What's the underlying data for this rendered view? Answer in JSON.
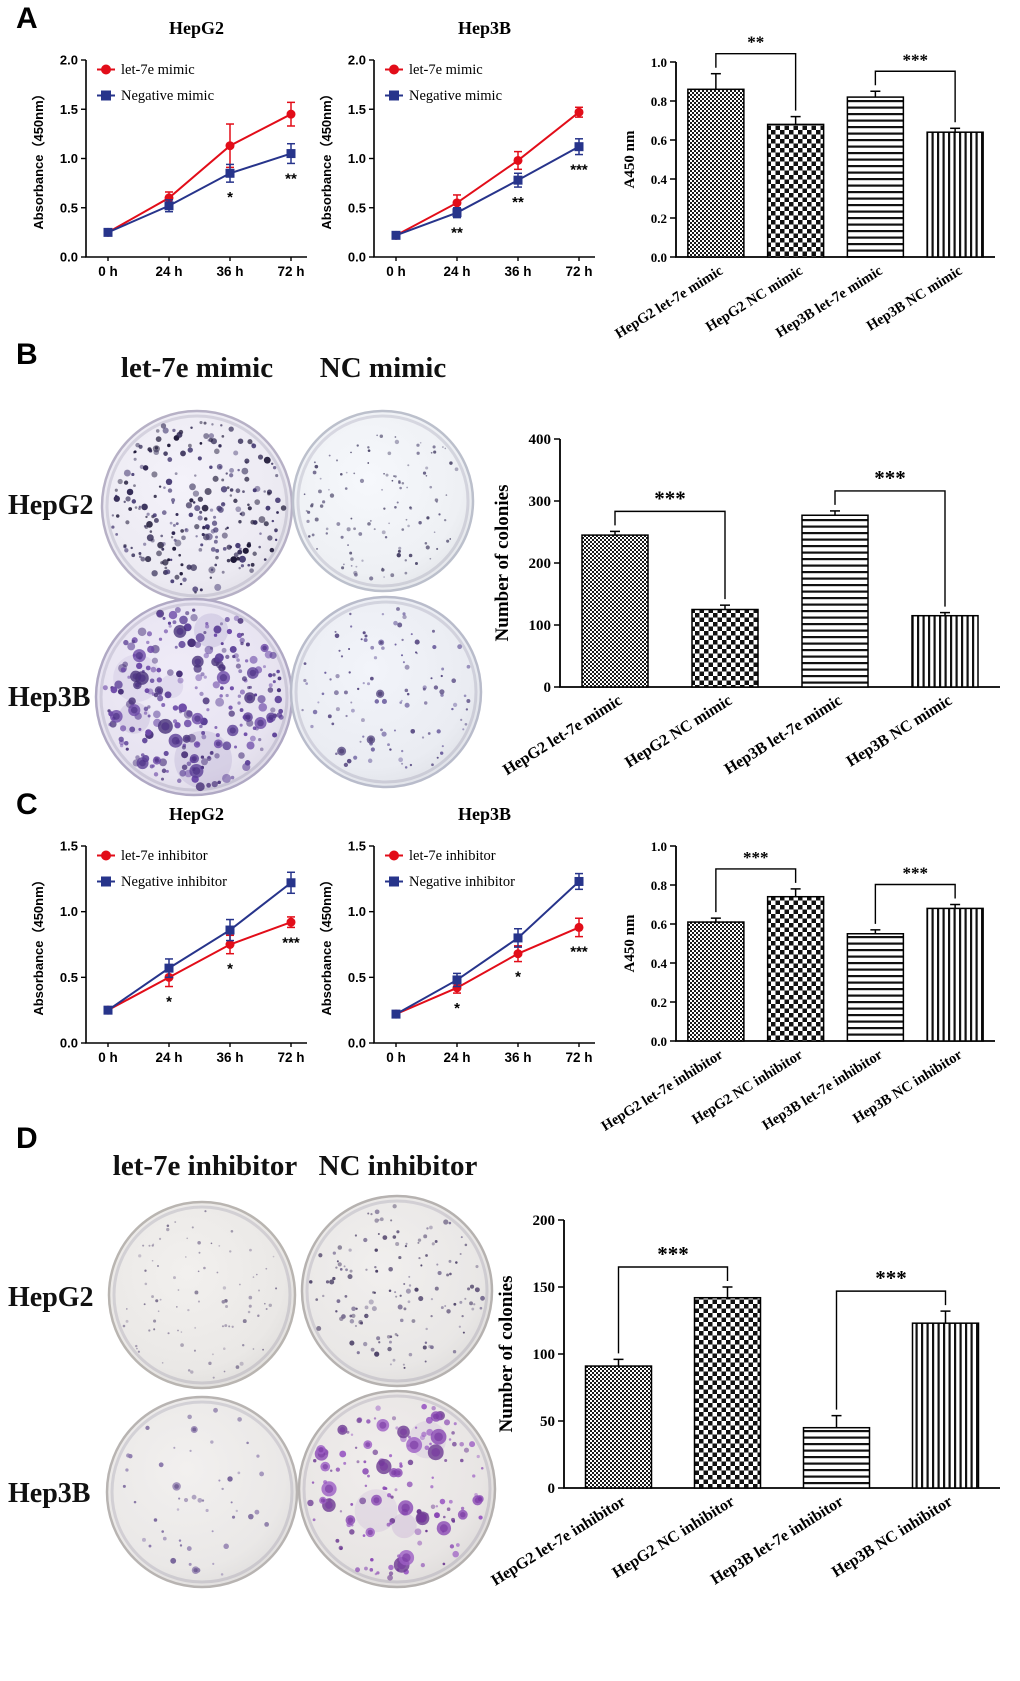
{
  "panels": {
    "a": {
      "label": "A"
    },
    "b": {
      "label": "B",
      "col_headers": [
        "let-7e mimic",
        "NC mimic"
      ],
      "row_labels": [
        "HepG2",
        "Hep3B"
      ]
    },
    "c": {
      "label": "C"
    },
    "d": {
      "label": "D",
      "col_headers": [
        "let-7e inhibitor",
        "NC inhibitor"
      ],
      "row_labels": [
        "HepG2",
        "Hep3B"
      ]
    }
  },
  "colors": {
    "let7e_series": "#e20d19",
    "negative_series": "#27348b",
    "bar_outline": "#000000"
  },
  "chart_data": [
    {
      "id": "a_hepg2",
      "type": "line",
      "title": "HepG2",
      "xlabel": "",
      "ylabel": "Absorbance（450nm）",
      "x": [
        "0 h",
        "24 h",
        "36 h",
        "72 h"
      ],
      "ylim": [
        0,
        2.0
      ],
      "yticks": [
        "0.0",
        "0.5",
        "1.0",
        "1.5",
        "2.0"
      ],
      "legend_position": "top-left",
      "grid": false,
      "series": [
        {
          "name": "let-7e mimic",
          "color": "#e20d19",
          "marker": "circle",
          "values": [
            0.25,
            0.6,
            1.13,
            1.45
          ],
          "errors": [
            0.02,
            0.06,
            0.22,
            0.12
          ]
        },
        {
          "name": "Negative mimic",
          "color": "#27348b",
          "marker": "square",
          "values": [
            0.25,
            0.52,
            0.85,
            1.05
          ],
          "errors": [
            0.02,
            0.06,
            0.09,
            0.1
          ]
        }
      ],
      "annotations": [
        {
          "x_index": 2,
          "text": "*"
        },
        {
          "x_index": 3,
          "text": "**"
        }
      ]
    },
    {
      "id": "a_hep3b",
      "type": "line",
      "title": "Hep3B",
      "xlabel": "",
      "ylabel": "Absorbance（450nm）",
      "x": [
        "0 h",
        "24 h",
        "36 h",
        "72 h"
      ],
      "ylim": [
        0,
        2.0
      ],
      "yticks": [
        "0.0",
        "0.5",
        "1.0",
        "1.5",
        "2.0"
      ],
      "legend_position": "top-left",
      "grid": false,
      "series": [
        {
          "name": "let-7e mimic",
          "color": "#e20d19",
          "marker": "circle",
          "values": [
            0.22,
            0.55,
            0.98,
            1.47
          ],
          "errors": [
            0.02,
            0.08,
            0.09,
            0.05
          ]
        },
        {
          "name": "Negative mimic",
          "color": "#27348b",
          "marker": "square",
          "values": [
            0.22,
            0.45,
            0.78,
            1.12
          ],
          "errors": [
            0.02,
            0.05,
            0.07,
            0.08
          ]
        }
      ],
      "annotations": [
        {
          "x_index": 1,
          "text": "**"
        },
        {
          "x_index": 2,
          "text": "**"
        },
        {
          "x_index": 3,
          "text": "***"
        }
      ]
    },
    {
      "id": "a_bar",
      "type": "bar",
      "ylabel": "A450 nm",
      "categories": [
        "HepG2 let-7e mimic",
        "HepG2 NC mimic",
        "Hep3B let-7e mimic",
        "Hep3B NC mimic"
      ],
      "values": [
        0.86,
        0.68,
        0.82,
        0.64
      ],
      "errors": [
        0.08,
        0.04,
        0.03,
        0.02
      ],
      "ylim": [
        0,
        1.0
      ],
      "yticks": [
        "0.0",
        "0.2",
        "0.4",
        "0.6",
        "0.8",
        "1.0"
      ],
      "patterns": [
        "finegrid",
        "checker",
        "hlines",
        "vlines"
      ],
      "sig": [
        {
          "from": 0,
          "to": 1,
          "text": "**"
        },
        {
          "from": 2,
          "to": 3,
          "text": "***"
        }
      ]
    },
    {
      "id": "b_bar",
      "type": "bar",
      "ylabel": "Number of colonies",
      "categories": [
        "HepG2 let-7e mimic",
        "HepG2 NC mimic",
        "Hep3B let-7e mimic",
        "Hep3B NC mimic"
      ],
      "values": [
        245,
        125,
        277,
        115
      ],
      "errors": [
        6,
        7,
        7,
        5
      ],
      "ylim": [
        0,
        400
      ],
      "yticks": [
        "0",
        "100",
        "200",
        "300",
        "400"
      ],
      "patterns": [
        "finegrid",
        "checker",
        "hlines",
        "vlines"
      ],
      "sig": [
        {
          "from": 0,
          "to": 1,
          "text": "***"
        },
        {
          "from": 2,
          "to": 3,
          "text": "***"
        }
      ]
    },
    {
      "id": "c_hepg2",
      "type": "line",
      "title": "HepG2",
      "xlabel": "",
      "ylabel": "Absorbance（450nm）",
      "x": [
        "0 h",
        "24 h",
        "36 h",
        "72 h"
      ],
      "ylim": [
        0,
        1.5
      ],
      "yticks": [
        "0.0",
        "0.5",
        "1.0",
        "1.5"
      ],
      "legend_position": "top-left",
      "grid": false,
      "series": [
        {
          "name": "let-7e inhibitor",
          "color": "#e20d19",
          "marker": "circle",
          "values": [
            0.25,
            0.5,
            0.75,
            0.92
          ],
          "errors": [
            0.02,
            0.07,
            0.07,
            0.04
          ]
        },
        {
          "name": "Negative inhibitor",
          "color": "#27348b",
          "marker": "square",
          "values": [
            0.25,
            0.57,
            0.86,
            1.22
          ],
          "errors": [
            0.02,
            0.07,
            0.08,
            0.08
          ]
        }
      ],
      "annotations": [
        {
          "x_index": 1,
          "text": "*"
        },
        {
          "x_index": 2,
          "text": "*"
        },
        {
          "x_index": 3,
          "text": "***"
        }
      ]
    },
    {
      "id": "c_hep3b",
      "type": "line",
      "title": "Hep3B",
      "xlabel": "",
      "ylabel": "Absorbance（450nm）",
      "x": [
        "0 h",
        "24 h",
        "36 h",
        "72 h"
      ],
      "ylim": [
        0,
        1.5
      ],
      "yticks": [
        "0.0",
        "0.5",
        "1.0",
        "1.5"
      ],
      "legend_position": "top-left",
      "grid": false,
      "series": [
        {
          "name": "let-7e inhibitor",
          "color": "#e20d19",
          "marker": "circle",
          "values": [
            0.22,
            0.42,
            0.68,
            0.88
          ],
          "errors": [
            0.02,
            0.04,
            0.06,
            0.07
          ]
        },
        {
          "name": "Negative inhibitor",
          "color": "#27348b",
          "marker": "square",
          "values": [
            0.22,
            0.48,
            0.8,
            1.23
          ],
          "errors": [
            0.02,
            0.05,
            0.07,
            0.06
          ]
        }
      ],
      "annotations": [
        {
          "x_index": 1,
          "text": "*"
        },
        {
          "x_index": 2,
          "text": "*"
        },
        {
          "x_index": 3,
          "text": "***"
        }
      ]
    },
    {
      "id": "c_bar",
      "type": "bar",
      "ylabel": "A450 nm",
      "categories": [
        "HepG2 let-7e inhibitor",
        "HepG2 NC inhibitor",
        "Hep3B let-7e inhibitor",
        "Hep3B NC inhibitor"
      ],
      "values": [
        0.61,
        0.74,
        0.55,
        0.68
      ],
      "errors": [
        0.02,
        0.04,
        0.02,
        0.02
      ],
      "ylim": [
        0,
        1.0
      ],
      "yticks": [
        "0.0",
        "0.2",
        "0.4",
        "0.6",
        "0.8",
        "1.0"
      ],
      "patterns": [
        "finegrid",
        "checker",
        "hlines",
        "vlines"
      ],
      "sig": [
        {
          "from": 0,
          "to": 1,
          "text": "***"
        },
        {
          "from": 2,
          "to": 3,
          "text": "***"
        }
      ]
    },
    {
      "id": "d_bar",
      "type": "bar",
      "ylabel": "Number of colonies",
      "categories": [
        "HepG2 let-7e inhibitor",
        "HepG2 NC inhibitor",
        "Hep3B let-7e inhibitor",
        "Hep3B NC inhibitor"
      ],
      "values": [
        91,
        142,
        45,
        123
      ],
      "errors": [
        5,
        8,
        9,
        9
      ],
      "ylim": [
        0,
        200
      ],
      "yticks": [
        "0",
        "50",
        "100",
        "150",
        "200"
      ],
      "patterns": [
        "finegrid",
        "checker",
        "hlines",
        "vlines"
      ],
      "sig": [
        {
          "from": 0,
          "to": 1,
          "text": "***"
        },
        {
          "from": 2,
          "to": 3,
          "text": "***"
        }
      ]
    }
  ],
  "dishes": [
    {
      "id": "b_hepg2_let7e",
      "label": "HepG2 let-7e mimic",
      "bg": "#eceaf2",
      "rim": "#b7b1c6",
      "colors": [
        "#2f2752",
        "#453a72",
        "#1e1838"
      ],
      "count": 260,
      "rmin": 1.2,
      "rmax": 3.6,
      "blobs": 0,
      "blob_r": [
        0,
        0
      ],
      "stains": 0,
      "seed": 11
    },
    {
      "id": "b_hepg2_nc",
      "label": "HepG2 NC mimic",
      "bg": "#eef0f4",
      "rim": "#bcc0cc",
      "colors": [
        "#4a4468",
        "#6a6488"
      ],
      "count": 120,
      "rmin": 0.8,
      "rmax": 2.2,
      "blobs": 0,
      "blob_r": [
        0,
        0
      ],
      "stains": 0,
      "seed": 22
    },
    {
      "id": "b_hep3b_let7e",
      "label": "Hep3B let-7e mimic",
      "bg": "#e7e3f0",
      "rim": "#b0a9c4",
      "colors": [
        "#5b3f96",
        "#6d4aa8",
        "#49327a"
      ],
      "count": 240,
      "rmin": 1.5,
      "rmax": 4.5,
      "blobs": 26,
      "blob_r": [
        4,
        7.5
      ],
      "stains": 5,
      "seed": 33
    },
    {
      "id": "b_hep3b_nc",
      "label": "Hep3B NC mimic",
      "bg": "#eaecf2",
      "rim": "#b9bccb",
      "colors": [
        "#584a82",
        "#6f62a0"
      ],
      "count": 110,
      "rmin": 1.0,
      "rmax": 2.6,
      "blobs": 4,
      "blob_r": [
        3,
        4.5
      ],
      "stains": 0,
      "seed": 44
    },
    {
      "id": "d_hepg2_let7e",
      "label": "HepG2 let-7e inhibitor",
      "bg": "#eae8e6",
      "rim": "#b9b5b1",
      "colors": [
        "#7d7390",
        "#978da6"
      ],
      "count": 90,
      "rmin": 0.8,
      "rmax": 2.0,
      "blobs": 0,
      "blob_r": [
        0,
        0
      ],
      "stains": 0,
      "seed": 55
    },
    {
      "id": "d_hepg2_nc",
      "label": "HepG2 NC inhibitor",
      "bg": "#e9e7e6",
      "rim": "#b6b2b0",
      "colors": [
        "#5f5378",
        "#7a6f93",
        "#4e4368"
      ],
      "count": 145,
      "rmin": 1.0,
      "rmax": 2.6,
      "blobs": 0,
      "blob_r": [
        0,
        0
      ],
      "stains": 0,
      "seed": 66
    },
    {
      "id": "d_hep3b_let7e",
      "label": "Hep3B let-7e inhibitor",
      "bg": "#eae8e7",
      "rim": "#b8b4b2",
      "colors": [
        "#6e5a94",
        "#8d7bad"
      ],
      "count": 48,
      "rmin": 1.0,
      "rmax": 3.0,
      "blobs": 3,
      "blob_r": [
        3,
        5
      ],
      "stains": 0,
      "seed": 77
    },
    {
      "id": "d_hep3b_nc",
      "label": "Hep3B NC inhibitor",
      "bg": "#e8e5e4",
      "rim": "#b5b1af",
      "colors": [
        "#8a49b4",
        "#9c5ec4",
        "#6d3a92"
      ],
      "count": 120,
      "rmin": 1.2,
      "rmax": 3.5,
      "blobs": 30,
      "blob_r": [
        3.5,
        8
      ],
      "stains": 3,
      "seed": 88
    }
  ]
}
